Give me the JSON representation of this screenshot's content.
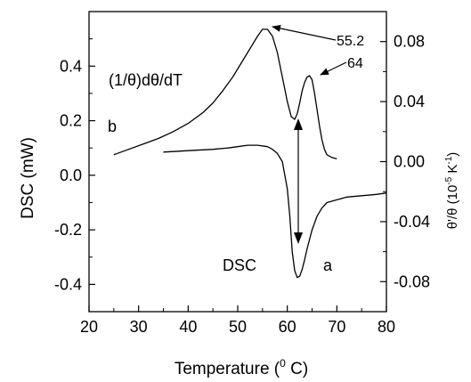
{
  "chart_data": {
    "type": "line",
    "xlabel_main": "Temperature (",
    "xlabel_sup": "0",
    "xlabel_end": " C)",
    "ylabel_left": "DSC (mW)",
    "ylabel_right_main": "θ'/θ (10",
    "ylabel_right_sup": "-5",
    "ylabel_right_mid": " K",
    "ylabel_right_sup2": "-1",
    "ylabel_right_end": ")",
    "xlim": [
      20,
      80
    ],
    "ylim_left": [
      -0.5,
      0.6
    ],
    "ylim_right": [
      -0.1,
      0.1
    ],
    "x_ticks": [
      "20",
      "30",
      "40",
      "50",
      "60",
      "70",
      "80"
    ],
    "y_left_ticks": [
      "-0.4",
      "-0.2",
      "0.0",
      "0.2",
      "0.4"
    ],
    "y_right_ticks": [
      "-0.08",
      "-0.04",
      "0.00",
      "0.04",
      "0.08"
    ],
    "series": [
      {
        "axis": "left",
        "x": [
          25,
          28,
          31,
          34,
          37,
          40,
          43,
          45,
          47,
          49,
          51,
          53,
          54,
          55,
          56,
          57,
          58,
          59,
          60,
          60.8,
          61.5,
          62,
          62.5,
          63,
          63.5,
          64,
          64.5,
          65,
          65.5,
          66,
          66.5,
          67,
          67.5,
          68,
          69,
          70
        ],
        "y": [
          0.075,
          0.095,
          0.115,
          0.135,
          0.16,
          0.19,
          0.23,
          0.265,
          0.31,
          0.36,
          0.42,
          0.48,
          0.51,
          0.535,
          0.535,
          0.51,
          0.45,
          0.36,
          0.27,
          0.215,
          0.205,
          0.225,
          0.265,
          0.31,
          0.34,
          0.36,
          0.365,
          0.35,
          0.3,
          0.24,
          0.18,
          0.13,
          0.095,
          0.075,
          0.065,
          0.06
        ]
      },
      {
        "axis": "left",
        "x": [
          35,
          40,
          45,
          48,
          50,
          52,
          54,
          56,
          57,
          58,
          59,
          60,
          60.5,
          61,
          61.5,
          62,
          62.5,
          63,
          63.5,
          64,
          65,
          66,
          67,
          68,
          70,
          72,
          75,
          78,
          80
        ],
        "y": [
          0.085,
          0.09,
          0.095,
          0.1,
          0.105,
          0.11,
          0.11,
          0.105,
          0.095,
          0.08,
          0.05,
          -0.05,
          -0.15,
          -0.28,
          -0.35,
          -0.375,
          -0.37,
          -0.345,
          -0.31,
          -0.27,
          -0.2,
          -0.15,
          -0.12,
          -0.1,
          -0.09,
          -0.08,
          -0.075,
          -0.07,
          -0.065
        ]
      }
    ],
    "annotations": {
      "peak1": "55.2",
      "peak2": "64",
      "curve_b_label": "(1/θ)dθ/dT",
      "b": "b",
      "a": "a",
      "dsc": "DSC"
    }
  }
}
